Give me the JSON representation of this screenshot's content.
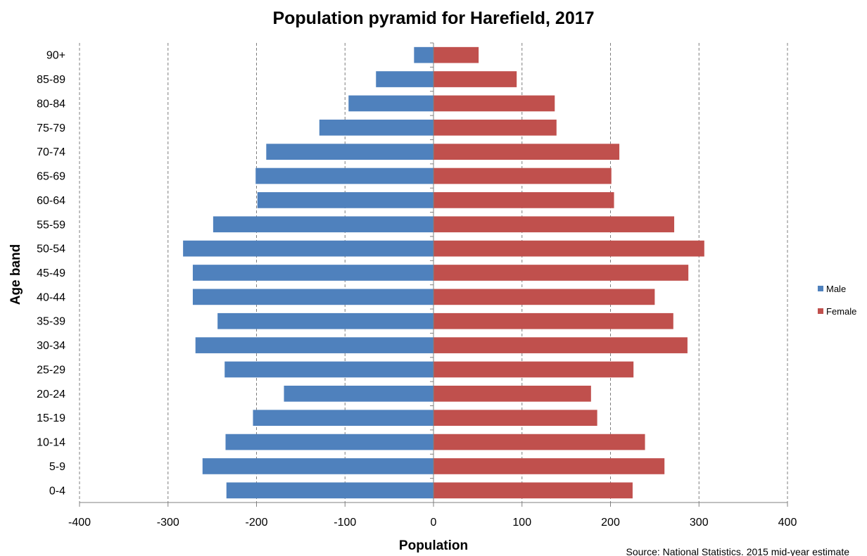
{
  "chart_data": {
    "type": "bar",
    "orientation": "horizontal",
    "title": "Population pyramid for Harefield, 2017",
    "xlabel": "Population",
    "ylabel": "Age band",
    "xlim": [
      -400,
      400
    ],
    "xticks": [
      -400,
      -300,
      -200,
      -100,
      0,
      100,
      200,
      300,
      400
    ],
    "grid": "vertical-dashed",
    "legend_position": "right",
    "categories": [
      "0-4",
      "5-9",
      "10-14",
      "15-19",
      "20-24",
      "25-29",
      "30-34",
      "35-39",
      "40-44",
      "45-49",
      "50-54",
      "55-59",
      "60-64",
      "65-69",
      "70-74",
      "75-79",
      "80-84",
      "85-89",
      "90+"
    ],
    "series": [
      {
        "name": "Male",
        "color": "#4f81bd",
        "values": [
          -234,
          -261,
          -235,
          -204,
          -169,
          -236,
          -269,
          -244,
          -272,
          -272,
          -283,
          -249,
          -199,
          -201,
          -189,
          -129,
          -96,
          -65,
          -22
        ]
      },
      {
        "name": "Female",
        "color": "#c0504d",
        "values": [
          225,
          261,
          239,
          185,
          178,
          226,
          287,
          271,
          250,
          288,
          306,
          272,
          204,
          201,
          210,
          139,
          137,
          94,
          51
        ]
      }
    ],
    "source": "Source: National Statistics. 2015 mid-year estimate"
  }
}
